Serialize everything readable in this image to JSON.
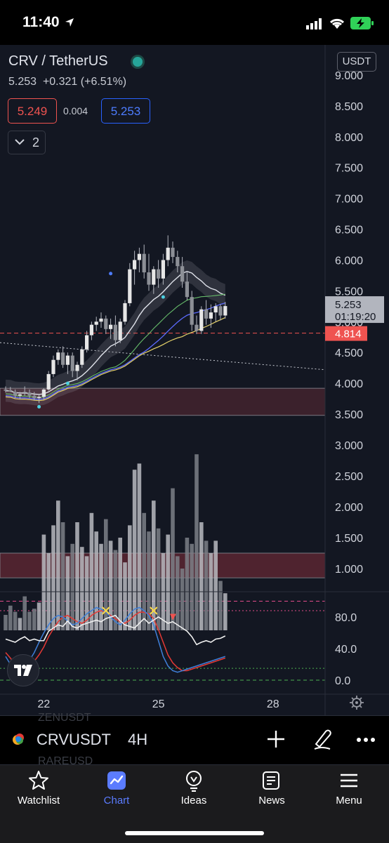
{
  "status_bar": {
    "time": "11:40"
  },
  "header": {
    "symbol_title": "CRV / TetherUS",
    "last_price": "5.253",
    "change": "+0.321 (+6.51%)",
    "bid": "5.249",
    "spread": "0.004",
    "ask": "5.253",
    "collapsed_count": "2",
    "currency": "USDT"
  },
  "colors": {
    "up": "#26a69a",
    "down": "#ef5350",
    "accent": "#2962ff",
    "background": "#131722"
  },
  "chart_data": {
    "type": "candlestick",
    "price_axis": {
      "ticks": [
        "9.000",
        "8.500",
        "8.000",
        "7.500",
        "7.000",
        "6.500",
        "6.000",
        "5.500",
        "5.000",
        "4.500",
        "4.000",
        "3.500"
      ],
      "range": [
        3.2,
        9.2
      ]
    },
    "volume_axis": {
      "ticks": [
        "3.000",
        "2.500",
        "2.000",
        "1.500",
        "1.000"
      ],
      "range": [
        0,
        3.5
      ]
    },
    "oscillator_axis": {
      "ticks": [
        "80.0",
        "40.0",
        "0.0"
      ],
      "range": [
        -5,
        110
      ],
      "upper_band": 100,
      "overbought": 88,
      "lower_band": 15,
      "oversold": 0
    },
    "x_axis": {
      "ticks": [
        {
          "label": "22",
          "index": 8
        },
        {
          "label": "25",
          "index": 32
        },
        {
          "label": "28",
          "index": 56
        }
      ]
    },
    "current_price": {
      "value": "5.253",
      "countdown": "01:19:20"
    },
    "line_price": {
      "value": "4.814"
    },
    "support_zone": [
      3.48,
      3.92
    ],
    "volume_zone": [
      0.85,
      1.25
    ],
    "candles": [
      {
        "o": 3.9,
        "h": 3.95,
        "l": 3.85,
        "c": 3.88
      },
      {
        "o": 3.89,
        "h": 3.94,
        "l": 3.86,
        "c": 3.87
      },
      {
        "o": 3.86,
        "h": 3.9,
        "l": 3.76,
        "c": 3.8
      },
      {
        "o": 3.8,
        "h": 3.86,
        "l": 3.74,
        "c": 3.82
      },
      {
        "o": 3.86,
        "h": 3.95,
        "l": 3.8,
        "c": 3.85
      },
      {
        "o": 3.85,
        "h": 3.9,
        "l": 3.76,
        "c": 3.8
      },
      {
        "o": 3.8,
        "h": 3.86,
        "l": 3.72,
        "c": 3.76
      },
      {
        "o": 3.76,
        "h": 3.82,
        "l": 3.68,
        "c": 3.78
      },
      {
        "o": 3.78,
        "h": 3.92,
        "l": 3.74,
        "c": 3.9
      },
      {
        "o": 3.9,
        "h": 4.2,
        "l": 3.88,
        "c": 4.15
      },
      {
        "o": 4.15,
        "h": 4.45,
        "l": 4.1,
        "c": 4.38
      },
      {
        "o": 4.38,
        "h": 4.55,
        "l": 4.3,
        "c": 4.5
      },
      {
        "o": 4.5,
        "h": 4.6,
        "l": 4.25,
        "c": 4.3
      },
      {
        "o": 4.3,
        "h": 4.5,
        "l": 4.15,
        "c": 4.45
      },
      {
        "o": 4.45,
        "h": 4.5,
        "l": 4.1,
        "c": 4.2
      },
      {
        "o": 4.2,
        "h": 4.35,
        "l": 4.05,
        "c": 4.3
      },
      {
        "o": 4.3,
        "h": 4.6,
        "l": 4.25,
        "c": 4.55
      },
      {
        "o": 4.55,
        "h": 4.85,
        "l": 4.5,
        "c": 4.78
      },
      {
        "o": 4.78,
        "h": 5.0,
        "l": 4.7,
        "c": 4.95
      },
      {
        "o": 4.95,
        "h": 5.08,
        "l": 4.85,
        "c": 5.0
      },
      {
        "o": 5.0,
        "h": 5.15,
        "l": 4.9,
        "c": 5.05
      },
      {
        "o": 5.05,
        "h": 5.1,
        "l": 4.8,
        "c": 4.88
      },
      {
        "o": 4.88,
        "h": 5.05,
        "l": 4.72,
        "c": 4.95
      },
      {
        "o": 4.95,
        "h": 5.1,
        "l": 4.6,
        "c": 4.7
      },
      {
        "o": 4.7,
        "h": 5.05,
        "l": 4.65,
        "c": 5.0
      },
      {
        "o": 5.0,
        "h": 5.35,
        "l": 4.95,
        "c": 5.3
      },
      {
        "o": 5.3,
        "h": 5.95,
        "l": 5.25,
        "c": 5.85
      },
      {
        "o": 5.85,
        "h": 6.15,
        "l": 5.6,
        "c": 6.0
      },
      {
        "o": 6.0,
        "h": 6.2,
        "l": 5.8,
        "c": 6.1
      },
      {
        "o": 6.1,
        "h": 6.25,
        "l": 5.7,
        "c": 5.8
      },
      {
        "o": 5.8,
        "h": 6.1,
        "l": 5.5,
        "c": 5.6
      },
      {
        "o": 5.6,
        "h": 5.9,
        "l": 5.45,
        "c": 5.85
      },
      {
        "o": 5.85,
        "h": 6.0,
        "l": 5.55,
        "c": 5.7
      },
      {
        "o": 5.7,
        "h": 6.1,
        "l": 5.6,
        "c": 6.0
      },
      {
        "o": 6.0,
        "h": 6.4,
        "l": 5.9,
        "c": 6.2
      },
      {
        "o": 6.2,
        "h": 6.3,
        "l": 5.95,
        "c": 6.05
      },
      {
        "o": 6.05,
        "h": 6.15,
        "l": 5.8,
        "c": 5.9
      },
      {
        "o": 5.9,
        "h": 6.05,
        "l": 5.55,
        "c": 5.65
      },
      {
        "o": 5.65,
        "h": 5.8,
        "l": 5.35,
        "c": 5.4
      },
      {
        "o": 5.4,
        "h": 5.5,
        "l": 4.85,
        "c": 4.95
      },
      {
        "o": 4.95,
        "h": 5.1,
        "l": 4.8,
        "c": 4.85
      },
      {
        "o": 4.85,
        "h": 5.25,
        "l": 4.8,
        "c": 5.2
      },
      {
        "o": 5.2,
        "h": 5.35,
        "l": 4.95,
        "c": 5.05
      },
      {
        "o": 5.05,
        "h": 5.28,
        "l": 4.9,
        "c": 5.15
      },
      {
        "o": 5.15,
        "h": 5.3,
        "l": 5.0,
        "c": 5.25
      },
      {
        "o": 5.25,
        "h": 5.28,
        "l": 5.02,
        "c": 5.1
      },
      {
        "o": 5.1,
        "h": 5.32,
        "l": 5.05,
        "c": 5.253
      }
    ],
    "volume": [
      0.25,
      0.4,
      0.3,
      0.2,
      0.55,
      0.3,
      0.35,
      0.45,
      1.55,
      1.25,
      1.7,
      2.1,
      1.75,
      1.2,
      1.4,
      1.75,
      1.35,
      1.2,
      1.9,
      1.6,
      1.4,
      1.8,
      1.45,
      1.3,
      1.5,
      1.1,
      1.7,
      2.6,
      2.7,
      1.9,
      1.6,
      2.1,
      1.65,
      1.25,
      1.55,
      2.3,
      1.2,
      1.0,
      1.5,
      1.4,
      2.85,
      1.75,
      1.45,
      1.25,
      1.45,
      0.8,
      0.6
    ],
    "oscillator": {
      "rsi": [
        52,
        50,
        48,
        52,
        55,
        50,
        52,
        50,
        50,
        62,
        66,
        70,
        68,
        75,
        68,
        66,
        70,
        72,
        74,
        76,
        74,
        78,
        80,
        82,
        75,
        70,
        68,
        66,
        72,
        78,
        72,
        76,
        80,
        76,
        72,
        74,
        70,
        66,
        62,
        55,
        45,
        48,
        50,
        48,
        52,
        53,
        56
      ],
      "k": [
        30,
        20,
        12,
        10,
        15,
        25,
        35,
        48,
        60,
        70,
        78,
        82,
        80,
        75,
        70,
        72,
        78,
        84,
        88,
        92,
        90,
        86,
        80,
        74,
        70,
        76,
        84,
        90,
        92,
        88,
        82,
        70,
        50,
        30,
        18,
        12,
        10,
        12,
        14,
        16,
        18,
        20,
        22,
        24,
        26,
        28,
        30
      ],
      "d": [
        35,
        28,
        20,
        15,
        14,
        18,
        24,
        32,
        42,
        55,
        65,
        74,
        80,
        82,
        78,
        74,
        72,
        76,
        82,
        86,
        88,
        86,
        82,
        78,
        74,
        72,
        76,
        82,
        86,
        86,
        84,
        78,
        64,
        48,
        32,
        22,
        16,
        12,
        12,
        14,
        16,
        18,
        20,
        22,
        24,
        26,
        28
      ]
    }
  },
  "symbol_bar": {
    "symbol": "CRVUSDT",
    "timeframe": "4H",
    "ghost_above": "ZENUSDT",
    "ghost_below": "RAREUSD"
  },
  "tabs": [
    {
      "label": "Watchlist",
      "icon": "star-icon"
    },
    {
      "label": "Chart",
      "icon": "chart-icon"
    },
    {
      "label": "Ideas",
      "icon": "bulb-icon"
    },
    {
      "label": "News",
      "icon": "news-icon"
    },
    {
      "label": "Menu",
      "icon": "menu-icon"
    }
  ]
}
